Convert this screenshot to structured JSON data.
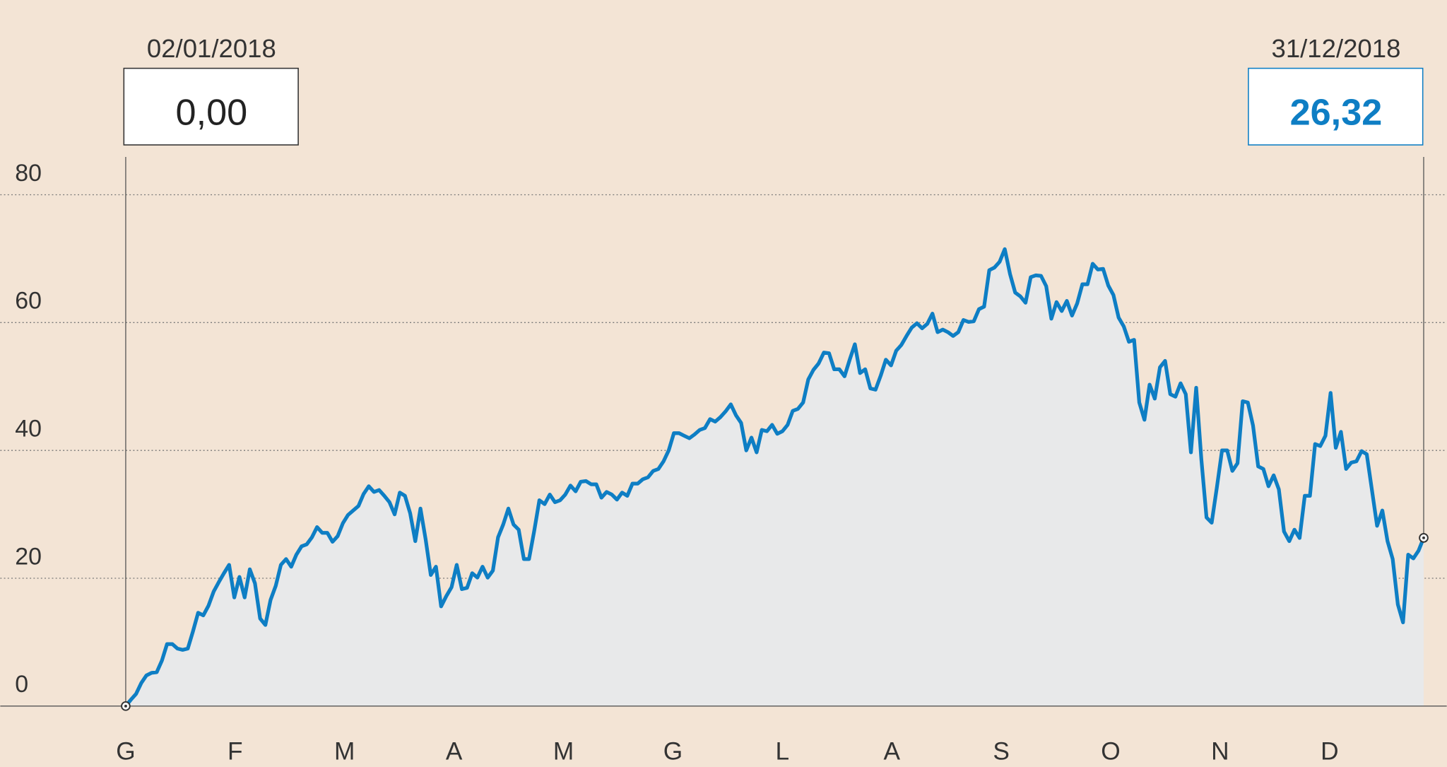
{
  "chart_data": {
    "type": "area",
    "title": "",
    "xlabel": "",
    "ylabel": "",
    "ylim": [
      0,
      80
    ],
    "yticks": [
      "0",
      "20",
      "40",
      "60",
      "80"
    ],
    "ytick_values": [
      0,
      20,
      40,
      60,
      80
    ],
    "months": [
      "G",
      "F",
      "M",
      "A",
      "M",
      "G",
      "L",
      "A",
      "S",
      "O",
      "N",
      "D"
    ],
    "grid": true,
    "start": {
      "date": "02/01/2018",
      "value": "0,00"
    },
    "end": {
      "date": "31/12/2018",
      "value": "26,32"
    },
    "colors": {
      "line": "#0e7ec4",
      "area": "#e8e9ea",
      "background": "#f3e4d5",
      "end_value": "#0e7ec4"
    },
    "values": [
      0,
      1.0,
      1.9,
      3.6,
      4.8,
      5.2,
      5.3,
      7.1,
      9.7,
      9.7,
      9.0,
      8.8,
      9.0,
      11.7,
      14.6,
      14.2,
      15.7,
      17.9,
      19.4,
      20.8,
      22.1,
      17.0,
      20.2,
      17.0,
      21.4,
      19.2,
      13.7,
      12.7,
      16.6,
      18.8,
      22.1,
      23.0,
      21.8,
      23.7,
      25.0,
      25.3,
      26.4,
      28.0,
      27.1,
      27.1,
      25.7,
      26.6,
      28.6,
      29.9,
      30.6,
      31.3,
      33.2,
      34.4,
      33.5,
      33.8,
      32.9,
      31.9,
      30.0,
      33.4,
      32.9,
      30.2,
      25.8,
      30.9,
      26.1,
      20.5,
      21.8,
      15.6,
      17.2,
      18.6,
      22.1,
      18.3,
      18.5,
      20.8,
      20.1,
      21.8,
      20.1,
      21.2,
      26.4,
      28.4,
      30.9,
      28.4,
      27.6,
      23.0,
      23.0,
      27.4,
      32.2,
      31.6,
      33.1,
      31.9,
      32.2,
      33.1,
      34.5,
      33.6,
      35.1,
      35.2,
      34.7,
      34.7,
      32.6,
      33.5,
      33.1,
      32.3,
      33.4,
      32.9,
      34.8,
      34.8,
      35.5,
      35.8,
      36.8,
      37.1,
      38.3,
      40.0,
      42.7,
      42.7,
      42.3,
      41.9,
      42.5,
      43.2,
      43.5,
      44.9,
      44.5,
      45.2,
      46.1,
      47.2,
      45.5,
      44.3,
      40.0,
      42.0,
      39.7,
      43.2,
      43.0,
      44.0,
      42.6,
      43.0,
      44.0,
      46.2,
      46.5,
      47.5,
      51.1,
      52.6,
      53.6,
      55.3,
      55.2,
      52.7,
      52.7,
      51.6,
      54.2,
      56.6,
      52.1,
      52.7,
      49.7,
      49.5,
      51.7,
      54.2,
      53.3,
      55.6,
      56.5,
      57.9,
      59.2,
      59.9,
      59.1,
      59.8,
      61.4,
      58.5,
      58.9,
      58.5,
      57.9,
      58.5,
      60.4,
      60.1,
      60.2,
      62.1,
      62.5,
      68.2,
      68.6,
      69.5,
      71.5,
      67.6,
      64.7,
      64.1,
      63.1,
      67.1,
      67.4,
      67.3,
      65.7,
      60.6,
      63.2,
      61.8,
      63.4,
      61.1,
      63.0,
      66.0,
      66.0,
      69.2,
      68.3,
      68.4,
      65.8,
      64.3,
      60.8,
      59.4,
      57.0,
      57.3,
      47.5,
      44.8,
      50.3,
      48.1,
      53.0,
      54.0,
      48.8,
      48.4,
      50.5,
      48.8,
      39.7,
      49.8,
      38.6,
      29.5,
      28.7,
      34.2,
      40.0,
      40.0,
      36.8,
      38.0,
      47.7,
      47.5,
      43.9,
      37.5,
      37.1,
      34.4,
      36.1,
      33.9,
      27.3,
      25.8,
      27.6,
      26.3,
      32.9,
      32.9,
      41.0,
      40.7,
      42.3,
      49.0,
      40.4,
      42.9,
      37.1,
      38.1,
      38.3,
      39.9,
      39.4,
      33.8,
      28.2,
      30.6,
      25.8,
      23.0,
      15.9,
      13.1,
      23.7,
      23.1,
      24.3,
      26.32
    ]
  }
}
